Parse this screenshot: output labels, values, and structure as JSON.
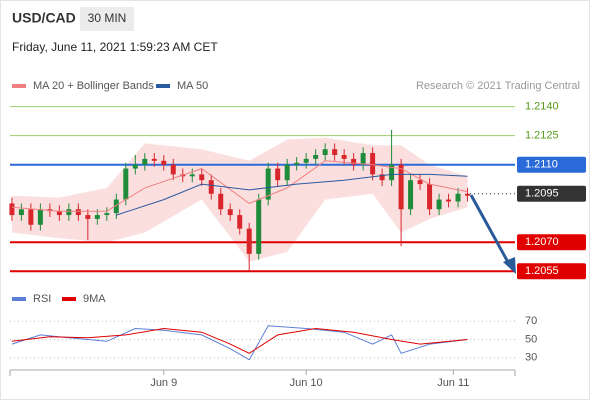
{
  "header": {
    "symbol": "USD/CAD",
    "interval": "30 MIN",
    "datetime": "Friday, June 11, 2021 1:59:23 AM CET"
  },
  "chart_data": [
    {
      "type": "candlestick",
      "attribution": "Research © 2021 Trading Central",
      "up_color": "#1e8c3a",
      "down_color": "#d8262c",
      "xlim": [
        -0.2,
        53
      ],
      "xticks": [
        {
          "value": 16,
          "label": "Jun 9"
        },
        {
          "value": 31,
          "label": "Jun 10"
        },
        {
          "value": 46.5,
          "label": "Jun 11"
        }
      ],
      "ylim": [
        1.2051,
        1.2147
      ],
      "levels": [
        {
          "value": 1.214,
          "label": "1.2140",
          "color": "#9bd16b",
          "badge": false,
          "dotted": false
        },
        {
          "value": 1.2125,
          "color": "#9bd16b",
          "badge": false,
          "dotted": false
        },
        {
          "value": 1.211,
          "label": "1.2110",
          "color": "#2a6ad9",
          "badge": true,
          "dotted": false
        },
        {
          "value": 1.2095,
          "color": "#333333",
          "badge": true,
          "dotted": true
        },
        {
          "value": 1.207,
          "label": "1.2070",
          "color": "#e00000",
          "badge": true,
          "dotted": false
        },
        {
          "value": 1.2055,
          "color": "#e00000",
          "badge": true,
          "dotted": false
        }
      ],
      "candles": [
        [
          1.209,
          1.2093,
          1.2081,
          1.2084
        ],
        [
          1.2084,
          1.209,
          1.2081,
          1.2087
        ],
        [
          1.2087,
          1.209,
          1.2076,
          1.2079
        ],
        [
          1.2079,
          1.209,
          1.2076,
          1.2087
        ],
        [
          1.2087,
          1.209,
          1.2083,
          1.2086
        ],
        [
          1.2086,
          1.2089,
          1.2081,
          1.2084
        ],
        [
          1.2084,
          1.209,
          1.2081,
          1.2087
        ],
        [
          1.2087,
          1.209,
          1.2081,
          1.2084
        ],
        [
          1.2084,
          1.2087,
          1.2071,
          1.2082
        ],
        [
          1.2082,
          1.2087,
          1.2079,
          1.2084
        ],
        [
          1.2084,
          1.2088,
          1.2081,
          1.2085
        ],
        [
          1.2085,
          1.2095,
          1.2082,
          1.2092
        ],
        [
          1.2092,
          1.2111,
          1.2089,
          1.2108
        ],
        [
          1.2108,
          1.2115,
          1.2105,
          1.211
        ],
        [
          1.211,
          1.2116,
          1.2107,
          1.2113
        ],
        [
          1.2113,
          1.2116,
          1.2109,
          1.2112
        ],
        [
          1.2112,
          1.2115,
          1.2107,
          1.211
        ],
        [
          1.211,
          1.2113,
          1.2102,
          1.2105
        ],
        [
          1.2105,
          1.2108,
          1.2101,
          1.2104
        ],
        [
          1.2104,
          1.2108,
          1.2101,
          1.2105
        ],
        [
          1.2105,
          1.2108,
          1.2099,
          1.2102
        ],
        [
          1.2102,
          1.2105,
          1.2092,
          1.2095
        ],
        [
          1.2095,
          1.2098,
          1.2084,
          1.2087
        ],
        [
          1.2087,
          1.209,
          1.2081,
          1.2084
        ],
        [
          1.2084,
          1.2087,
          1.2074,
          1.2077
        ],
        [
          1.2077,
          1.208,
          1.2055,
          1.2064
        ],
        [
          1.2064,
          1.2095,
          1.2061,
          1.2092
        ],
        [
          1.2092,
          1.2111,
          1.2089,
          1.2108
        ],
        [
          1.2108,
          1.2111,
          1.2099,
          1.2102
        ],
        [
          1.2102,
          1.2113,
          1.2099,
          1.211
        ],
        [
          1.211,
          1.2114,
          1.2107,
          1.2111
        ],
        [
          1.2111,
          1.2116,
          1.2108,
          1.2113
        ],
        [
          1.2113,
          1.2118,
          1.211,
          1.2115
        ],
        [
          1.2115,
          1.2121,
          1.2112,
          1.2118
        ],
        [
          1.2118,
          1.2121,
          1.2112,
          1.2115
        ],
        [
          1.2115,
          1.2118,
          1.211,
          1.2113
        ],
        [
          1.2113,
          1.2116,
          1.2107,
          1.211
        ],
        [
          1.211,
          1.2119,
          1.2107,
          1.2116
        ],
        [
          1.2116,
          1.2119,
          1.2102,
          1.2105
        ],
        [
          1.2105,
          1.2108,
          1.2099,
          1.2102
        ],
        [
          1.2102,
          1.2128,
          1.2099,
          1.211
        ],
        [
          1.211,
          1.2113,
          1.2068,
          1.2087
        ],
        [
          1.2087,
          1.2105,
          1.2084,
          1.2102
        ],
        [
          1.2102,
          1.2105,
          1.2097,
          1.21
        ],
        [
          1.21,
          1.2103,
          1.2084,
          1.2087
        ],
        [
          1.2087,
          1.2095,
          1.2084,
          1.2092
        ],
        [
          1.2092,
          1.2095,
          1.2088,
          1.2091
        ],
        [
          1.2091,
          1.2098,
          1.2088,
          1.2095
        ],
        [
          1.2095,
          1.2098,
          1.2091,
          1.2094
        ]
      ],
      "series": [
        {
          "name": "MA 20 + Bollinger Bands",
          "color": "#f08080",
          "x": [
            0,
            5,
            10,
            14,
            20,
            25,
            29,
            33,
            38,
            41,
            44,
            48
          ],
          "values": [
            1.2088,
            1.2086,
            1.2086,
            1.2098,
            1.2108,
            1.209,
            1.2098,
            1.2112,
            1.211,
            1.2108,
            1.21,
            1.2096
          ],
          "upper": [
            1.2094,
            1.2093,
            1.2098,
            1.2121,
            1.2118,
            1.2112,
            1.2123,
            1.2124,
            1.212,
            1.212,
            1.211,
            1.2104
          ],
          "lower": [
            1.2075,
            1.2072,
            1.207,
            1.2075,
            1.2092,
            1.206,
            1.2065,
            1.2092,
            1.2095,
            1.2075,
            1.2082,
            1.2088
          ]
        },
        {
          "name": "MA 50",
          "color": "#2a5aa0",
          "x": [
            11,
            16,
            20,
            25,
            30,
            35,
            40,
            44,
            48
          ],
          "values": [
            1.2084,
            1.2092,
            1.21,
            1.2097,
            1.21,
            1.2102,
            1.2105,
            1.2105,
            1.2104
          ]
        }
      ]
    },
    {
      "type": "line",
      "xlim": [
        -0.2,
        53
      ],
      "ylim": [
        20,
        80
      ],
      "yticks": [
        70,
        50,
        30
      ],
      "series": [
        {
          "name": "RSI",
          "color": "#5b7fd6",
          "x": [
            0,
            3,
            6,
            10,
            13,
            16,
            20,
            23,
            25,
            27,
            31,
            35,
            38,
            40,
            41,
            44,
            48
          ],
          "values": [
            45,
            55,
            52,
            48,
            62,
            60,
            55,
            40,
            28,
            65,
            62,
            58,
            45,
            55,
            35,
            45,
            50
          ]
        },
        {
          "name": "9MA",
          "color": "#e00000",
          "x": [
            0,
            4,
            8,
            12,
            16,
            20,
            23,
            25,
            28,
            32,
            36,
            40,
            43,
            48
          ],
          "values": [
            48,
            53,
            52,
            55,
            62,
            58,
            45,
            35,
            55,
            62,
            58,
            50,
            45,
            50
          ]
        }
      ]
    }
  ]
}
